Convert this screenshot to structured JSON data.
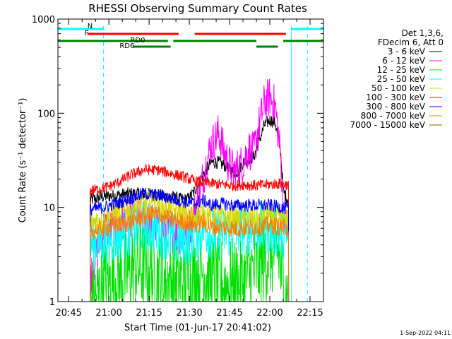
{
  "chart_data": {
    "type": "line",
    "title": "RHESSI Observing Summary Count Rates",
    "xlabel": "Start Time (01-Jun-17 20:41:02)",
    "ylabel": "Count Rate (s⁻¹ detector⁻¹)",
    "yscale": "log",
    "ylim": [
      1,
      1000
    ],
    "xlim": [
      "20:41",
      "22:20"
    ],
    "x_ticks": [
      "20:45",
      "21:00",
      "21:15",
      "21:30",
      "21:45",
      "22:00",
      "22:15"
    ],
    "y_ticks": [
      "1",
      "10",
      "100",
      "1000"
    ],
    "footer": "1-Sep-2022 04:11",
    "legend": {
      "position": "right",
      "header": [
        "Det 1,3,6,",
        "FDecim 6, Att 0"
      ],
      "entries": [
        {
          "label": "3 - 6 keV",
          "color": "#000000"
        },
        {
          "label": "6 - 12 keV",
          "color": "#ff00ff"
        },
        {
          "label": "12 - 25 keV",
          "color": "#00e000"
        },
        {
          "label": "25 - 50 keV",
          "color": "#00ffff"
        },
        {
          "label": "50 - 100 keV",
          "color": "#d8d800"
        },
        {
          "label": "100 - 300 keV",
          "color": "#ff0000"
        },
        {
          "label": "300 - 800 keV",
          "color": "#0000ff"
        },
        {
          "label": "800 - 7000 keV",
          "color": "#ff8000"
        },
        {
          "label": "7000 - 15000 keV",
          "color": "#806000"
        }
      ]
    },
    "flag_bars": [
      {
        "label": "N",
        "color": "#00ffff",
        "segments": [
          [
            "20:41",
            "20:58"
          ],
          [
            "22:08",
            "22:20"
          ]
        ]
      },
      {
        "label": "F",
        "color": "#ff0000",
        "segments": [
          [
            "20:52",
            "21:26"
          ],
          [
            "21:32",
            "22:06"
          ]
        ]
      },
      {
        "label": "RD0",
        "color": "#008000",
        "segments": [
          [
            "20:41",
            "21:22"
          ],
          [
            "21:24",
            "21:55"
          ],
          [
            "22:05",
            "22:20"
          ]
        ]
      },
      {
        "label": "RD6",
        "color": "#008000",
        "segments": [
          [
            "21:09",
            "21:23"
          ],
          [
            "21:55",
            "22:03"
          ]
        ]
      }
    ],
    "night_markers": [
      {
        "time": "20:58",
        "style": "dashed"
      },
      {
        "time": "22:08",
        "style": "solid"
      },
      {
        "time": "22:14",
        "style": "dashed"
      }
    ],
    "series": [
      {
        "name": "3 - 6 keV",
        "color": "#000000",
        "x": [
          "20:53",
          "20:58",
          "21:03",
          "21:08",
          "21:13",
          "21:18",
          "21:23",
          "21:28",
          "21:30",
          "21:32",
          "21:35",
          "21:38",
          "21:41",
          "21:44",
          "21:46",
          "21:48",
          "21:50",
          "21:52",
          "21:54",
          "21:56",
          "21:58",
          "22:00",
          "22:02",
          "22:04",
          "22:05",
          "22:06",
          "22:07"
        ],
        "y": [
          12,
          13,
          13.5,
          14,
          14,
          13.5,
          13,
          12,
          12.5,
          15,
          22,
          30,
          30,
          27,
          24,
          24,
          30,
          33,
          34,
          50,
          75,
          85,
          80,
          40,
          15,
          13,
          12
        ]
      },
      {
        "name": "6 - 12 keV",
        "color": "#ff00ff",
        "x": [
          "20:53",
          "20:58",
          "21:03",
          "21:08",
          "21:13",
          "21:18",
          "21:23",
          "21:28",
          "21:30",
          "21:32",
          "21:35",
          "21:38",
          "21:41",
          "21:43",
          "21:45",
          "21:47",
          "21:50",
          "21:52",
          "21:54",
          "21:56",
          "21:58",
          "22:00",
          "22:02",
          "22:04",
          "22:05",
          "22:06",
          "22:07"
        ],
        "y": [
          1.8,
          6,
          6,
          8,
          7.5,
          6.5,
          5.5,
          5,
          6,
          9,
          20,
          45,
          62,
          38,
          28,
          24,
          30,
          42,
          38,
          75,
          130,
          150,
          120,
          35,
          9,
          7,
          6
        ]
      },
      {
        "name": "12 - 25 keV",
        "color": "#00e000",
        "x": [
          "20:53",
          "20:55",
          "20:58",
          "21:00",
          "21:05",
          "21:10",
          "21:15",
          "21:20",
          "21:25",
          "21:30",
          "21:35",
          "21:40",
          "21:45",
          "21:50",
          "21:55",
          "22:00",
          "22:03",
          "22:05",
          "22:06",
          "22:07"
        ],
        "y": [
          1,
          1,
          1.5,
          1.6,
          1.8,
          2.4,
          2.2,
          1.8,
          1.6,
          1.7,
          2.2,
          1.6,
          1.5,
          1.6,
          2.2,
          3.3,
          3.5,
          1.5,
          1.2,
          1
        ]
      },
      {
        "name": "25 - 50 keV",
        "color": "#00ffff",
        "x": [
          "20:53",
          "20:58",
          "21:05",
          "21:10",
          "21:15",
          "21:20",
          "21:25",
          "21:30",
          "21:35",
          "21:40",
          "21:45",
          "21:50",
          "21:55",
          "22:00",
          "22:05",
          "22:07"
        ],
        "y": [
          4,
          4.5,
          5.2,
          6,
          6.2,
          5.5,
          4.5,
          4.5,
          6,
          5,
          5.5,
          5.8,
          6,
          6,
          5,
          4.5
        ]
      },
      {
        "name": "50 - 100 keV",
        "color": "#d8d800",
        "x": [
          "20:53",
          "20:58",
          "21:05",
          "21:10",
          "21:15",
          "21:20",
          "21:25",
          "21:30",
          "21:35",
          "21:40",
          "21:45",
          "21:50",
          "21:55",
          "22:00",
          "22:05",
          "22:07"
        ],
        "y": [
          7,
          7.5,
          9,
          10,
          11,
          10,
          9,
          8,
          8.5,
          8,
          7.5,
          7.5,
          7.5,
          8,
          7,
          7
        ]
      },
      {
        "name": "100 - 300 keV",
        "color": "#ff0000",
        "x": [
          "20:53",
          "20:58",
          "21:03",
          "21:08",
          "21:13",
          "21:18",
          "21:23",
          "21:28",
          "21:32",
          "21:35",
          "21:38",
          "21:42",
          "21:46",
          "21:50",
          "21:55",
          "22:00",
          "22:05",
          "22:07"
        ],
        "y": [
          15,
          16,
          18,
          22,
          25,
          25,
          23,
          21,
          19,
          18.5,
          18,
          17.5,
          17,
          17.5,
          17,
          17.5,
          18,
          17
        ]
      },
      {
        "name": "300 - 800 keV",
        "color": "#0000ff",
        "x": [
          "20:53",
          "20:58",
          "21:03",
          "21:08",
          "21:13",
          "21:18",
          "21:23",
          "21:28",
          "21:32",
          "21:35",
          "21:38",
          "21:42",
          "21:46",
          "21:50",
          "21:55",
          "22:00",
          "22:05",
          "22:07"
        ],
        "y": [
          9.5,
          10,
          11,
          12.5,
          14,
          13.5,
          12.5,
          11.5,
          11,
          12,
          10.5,
          11,
          10.5,
          10.5,
          10.5,
          10.5,
          10,
          9.5
        ]
      },
      {
        "name": "800 - 7000 keV",
        "color": "#ff8000",
        "x": [
          "20:53",
          "20:58",
          "21:03",
          "21:08",
          "21:13",
          "21:18",
          "21:23",
          "21:28",
          "21:32",
          "21:35",
          "21:38",
          "21:42",
          "21:46",
          "21:50",
          "21:55",
          "22:00",
          "22:05",
          "22:07"
        ],
        "y": [
          5.5,
          6,
          6.5,
          7,
          8,
          8.5,
          7.5,
          7,
          6.5,
          7,
          6.2,
          6.2,
          6,
          6,
          6.2,
          6.5,
          6.2,
          6
        ]
      },
      {
        "name": "7000 - 15000 keV",
        "color": "#806000",
        "x": [],
        "y": []
      }
    ]
  }
}
